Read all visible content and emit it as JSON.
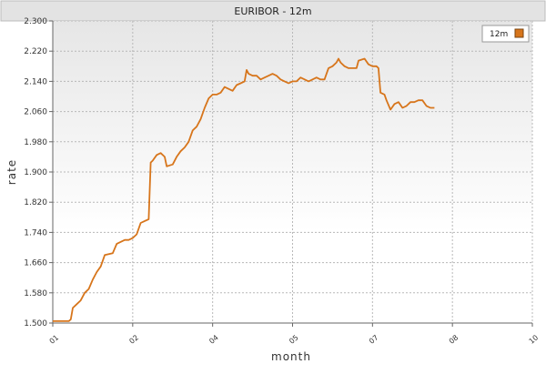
{
  "chart_data": {
    "type": "line",
    "title": "EURIBOR - 12m",
    "xlabel": "month",
    "ylabel": "rate",
    "x_ticks": [
      "01",
      "02",
      "04",
      "05",
      "07",
      "08",
      "10"
    ],
    "y_ticks": [
      "1.500",
      "1.580",
      "1.660",
      "1.740",
      "1.820",
      "1.900",
      "1.980",
      "2.060",
      "2.140",
      "2.220",
      "2.300"
    ],
    "ylim": [
      1.5,
      2.3
    ],
    "xlim": [
      0,
      12
    ],
    "grid": true,
    "legend_position": "top-right",
    "series": [
      {
        "name": "12m",
        "color": "#d7751b",
        "points": [
          [
            0.0,
            1.505
          ],
          [
            0.4,
            1.505
          ],
          [
            0.45,
            1.51
          ],
          [
            0.5,
            1.54
          ],
          [
            0.6,
            1.55
          ],
          [
            0.7,
            1.56
          ],
          [
            0.8,
            1.58
          ],
          [
            0.9,
            1.59
          ],
          [
            1.0,
            1.615
          ],
          [
            1.1,
            1.635
          ],
          [
            1.2,
            1.65
          ],
          [
            1.3,
            1.68
          ],
          [
            1.5,
            1.685
          ],
          [
            1.6,
            1.71
          ],
          [
            1.7,
            1.715
          ],
          [
            1.8,
            1.72
          ],
          [
            1.9,
            1.72
          ],
          [
            2.0,
            1.725
          ],
          [
            2.1,
            1.735
          ],
          [
            2.2,
            1.765
          ],
          [
            2.3,
            1.77
          ],
          [
            2.4,
            1.775
          ],
          [
            2.45,
            1.925
          ],
          [
            2.5,
            1.93
          ],
          [
            2.6,
            1.945
          ],
          [
            2.7,
            1.95
          ],
          [
            2.8,
            1.94
          ],
          [
            2.85,
            1.915
          ],
          [
            3.0,
            1.92
          ],
          [
            3.1,
            1.94
          ],
          [
            3.2,
            1.955
          ],
          [
            3.3,
            1.965
          ],
          [
            3.4,
            1.98
          ],
          [
            3.5,
            2.01
          ],
          [
            3.6,
            2.02
          ],
          [
            3.7,
            2.04
          ],
          [
            3.8,
            2.07
          ],
          [
            3.9,
            2.095
          ],
          [
            4.0,
            2.105
          ],
          [
            4.1,
            2.105
          ],
          [
            4.2,
            2.11
          ],
          [
            4.3,
            2.125
          ],
          [
            4.4,
            2.12
          ],
          [
            4.5,
            2.115
          ],
          [
            4.6,
            2.13
          ],
          [
            4.7,
            2.135
          ],
          [
            4.8,
            2.14
          ],
          [
            4.85,
            2.17
          ],
          [
            4.9,
            2.16
          ],
          [
            5.0,
            2.155
          ],
          [
            5.1,
            2.155
          ],
          [
            5.2,
            2.145
          ],
          [
            5.3,
            2.15
          ],
          [
            5.4,
            2.155
          ],
          [
            5.5,
            2.16
          ],
          [
            5.6,
            2.155
          ],
          [
            5.7,
            2.145
          ],
          [
            5.8,
            2.14
          ],
          [
            5.9,
            2.135
          ],
          [
            6.0,
            2.14
          ],
          [
            6.1,
            2.14
          ],
          [
            6.2,
            2.15
          ],
          [
            6.3,
            2.145
          ],
          [
            6.4,
            2.14
          ],
          [
            6.5,
            2.145
          ],
          [
            6.6,
            2.15
          ],
          [
            6.7,
            2.145
          ],
          [
            6.8,
            2.145
          ],
          [
            6.85,
            2.16
          ],
          [
            6.9,
            2.175
          ],
          [
            7.0,
            2.18
          ],
          [
            7.1,
            2.19
          ],
          [
            7.15,
            2.2
          ],
          [
            7.2,
            2.19
          ],
          [
            7.3,
            2.18
          ],
          [
            7.4,
            2.175
          ],
          [
            7.5,
            2.175
          ],
          [
            7.6,
            2.175
          ],
          [
            7.65,
            2.195
          ],
          [
            7.8,
            2.2
          ],
          [
            7.9,
            2.185
          ],
          [
            8.0,
            2.18
          ],
          [
            8.1,
            2.18
          ],
          [
            8.15,
            2.175
          ],
          [
            8.2,
            2.11
          ],
          [
            8.3,
            2.105
          ],
          [
            8.35,
            2.09
          ],
          [
            8.45,
            2.065
          ],
          [
            8.55,
            2.08
          ],
          [
            8.65,
            2.085
          ],
          [
            8.75,
            2.07
          ],
          [
            8.85,
            2.075
          ],
          [
            8.95,
            2.085
          ],
          [
            9.05,
            2.085
          ],
          [
            9.15,
            2.09
          ],
          [
            9.25,
            2.09
          ],
          [
            9.35,
            2.075
          ],
          [
            9.45,
            2.07
          ],
          [
            9.55,
            2.07
          ]
        ]
      }
    ]
  }
}
